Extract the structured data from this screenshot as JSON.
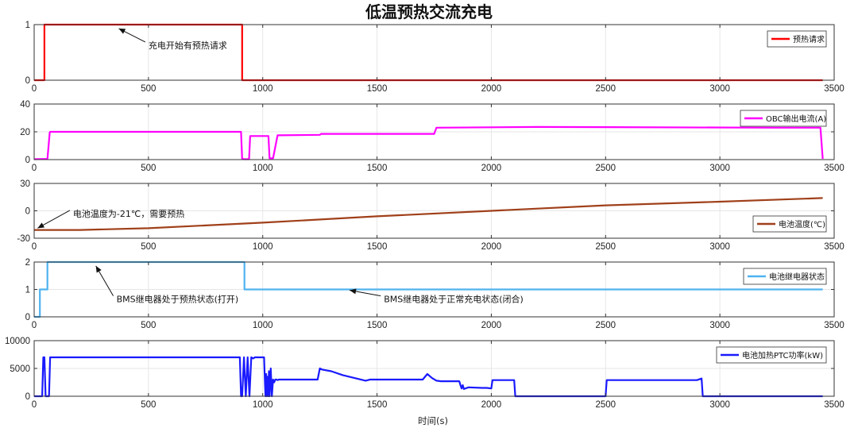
{
  "chart_data": {
    "type": "line",
    "title": "低温预热交流充电",
    "xlabel": "时间(s)",
    "xlim": [
      0,
      3500
    ],
    "xticks": [
      0,
      500,
      1000,
      1500,
      2000,
      2500,
      3000,
      3500
    ],
    "x_tick_labels": [
      "0",
      "500",
      "1000",
      "1500",
      "2000",
      "2500",
      "3000",
      "3500"
    ],
    "grid": true,
    "panels": [
      {
        "id": "preheat",
        "legend": "预热请求",
        "legend_position": "top-right",
        "color": "#ff0000",
        "ylim": [
          0,
          1
        ],
        "yticks": [
          0,
          1
        ],
        "y_tick_labels": [
          "0",
          "1"
        ],
        "x": [
          0,
          45,
          45,
          910,
          910,
          3450
        ],
        "y": [
          0,
          0,
          1,
          1,
          0,
          0
        ],
        "annotations": [
          {
            "text": "充电开始有预热请求",
            "x": 500,
            "y": 0.63,
            "arrow_to": [
              370,
              0.93
            ]
          }
        ]
      },
      {
        "id": "obc",
        "legend": "OBC输出电流(A)",
        "legend_position": "top-right",
        "color": "#ff00ff",
        "ylim": [
          0,
          40
        ],
        "yticks": [
          0,
          20,
          40
        ],
        "y_tick_labels": [
          "0",
          "20",
          "40"
        ],
        "x": [
          0,
          58,
          68,
          70,
          905,
          910,
          920,
          940,
          945,
          1000,
          1025,
          1030,
          1045,
          1065,
          1070,
          1250,
          1255,
          1750,
          1760,
          2200,
          3250,
          3440,
          3450
        ],
        "y": [
          0.3,
          0.5,
          19.5,
          20,
          20,
          0.5,
          0.3,
          0.3,
          17,
          17,
          17,
          1,
          1,
          17.5,
          17.5,
          17.8,
          18.5,
          18.5,
          23,
          23.5,
          23,
          23,
          0.5
        ]
      },
      {
        "id": "temp",
        "legend": "电池温度(℃)",
        "legend_position": "bottom-right",
        "color": "#a0401a",
        "ylim": [
          -30,
          30
        ],
        "yticks": [
          -30,
          0,
          30
        ],
        "y_tick_labels": [
          "-30",
          "0",
          "30"
        ],
        "x": [
          0,
          200,
          500,
          1000,
          1500,
          2000,
          2500,
          3000,
          3450
        ],
        "y": [
          -21,
          -21,
          -19,
          -13,
          -6,
          0,
          6,
          10,
          14
        ],
        "annotations": [
          {
            "text": "电池温度为-21℃，需要预热",
            "x": 170,
            "y": -3,
            "arrow_to": [
              15,
              -19
            ]
          }
        ]
      },
      {
        "id": "bms",
        "legend": "电池继电器状态",
        "legend_position": "top-right",
        "color": "#4fb3f0",
        "ylim": [
          0,
          2
        ],
        "yticks": [
          0,
          1,
          2
        ],
        "y_tick_labels": [
          "0",
          "1",
          "2"
        ],
        "x": [
          0,
          25,
          25,
          58,
          58,
          920,
          920,
          3450
        ],
        "y": [
          0,
          0,
          1,
          1,
          2,
          2,
          1,
          1
        ],
        "annotations": [
          {
            "text": "BMS继电器处于预热状态(打开)",
            "x": 360,
            "y": 0.65,
            "arrow_to": [
              270,
              1.86
            ]
          },
          {
            "text": "BMS继电器处于正常充电状态(闭合)",
            "x": 1530,
            "y": 0.65,
            "arrow_to": [
              1380,
              0.97
            ]
          }
        ]
      },
      {
        "id": "ptc",
        "legend": "电池加热PTC功率(kW)",
        "legend_position": "top-right",
        "color": "#1a1aff",
        "ylim": [
          0,
          10000
        ],
        "yticks": [
          0,
          5000,
          10000
        ],
        "y_tick_labels": [
          "0",
          "5000",
          "10000"
        ],
        "x": [
          0,
          35,
          40,
          45,
          50,
          55,
          60,
          65,
          70,
          900,
          905,
          910,
          918,
          926,
          934,
          942,
          950,
          958,
          966,
          974,
          982,
          990,
          998,
          1006,
          1010,
          1012,
          1015,
          1018,
          1021,
          1024,
          1027,
          1030,
          1035,
          1040,
          1045,
          1050,
          1055,
          1060,
          1065,
          1070,
          1240,
          1250,
          1260,
          1300,
          1350,
          1400,
          1450,
          1460,
          1470,
          1700,
          1720,
          1740,
          1760,
          1780,
          1860,
          1865,
          1870,
          1875,
          1880,
          1900,
          1960,
          1980,
          2000,
          2005,
          2100,
          2105,
          2500,
          2505,
          2900,
          2920,
          2925,
          3450
        ],
        "y": [
          0,
          0,
          7000,
          7000,
          0,
          0,
          0,
          0,
          7000,
          7000,
          0,
          0,
          7000,
          0,
          7000,
          0,
          7000,
          6800,
          7000,
          7000,
          7000,
          7000,
          7000,
          7000,
          2000,
          0,
          4000,
          0,
          3500,
          0,
          4500,
          0,
          5000,
          0,
          3000,
          2500,
          3000,
          3000,
          2900,
          3000,
          3000,
          5000,
          4800,
          4500,
          3800,
          3300,
          2800,
          2900,
          3000,
          3000,
          4000,
          3300,
          2800,
          2700,
          2700,
          2000,
          1400,
          2000,
          1300,
          1600,
          1500,
          1500,
          1400,
          2900,
          2900,
          0,
          0,
          2900,
          2900,
          3200,
          0,
          0
        ]
      }
    ]
  }
}
